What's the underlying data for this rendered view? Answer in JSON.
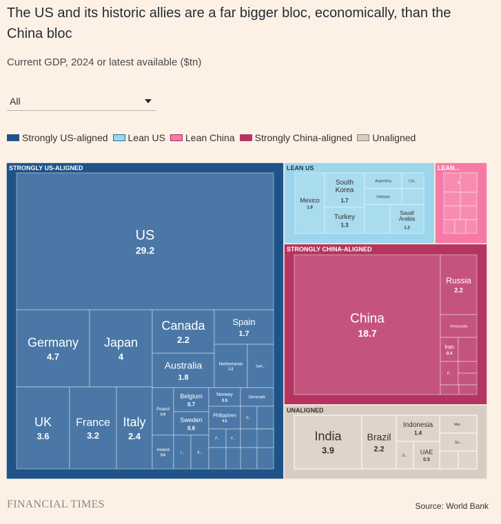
{
  "header": {
    "title": "The US and its historic allies are a far bigger bloc, economically, than the China bloc",
    "subtitle": "Current GDP, 2024 or latest available ($tn)"
  },
  "filter": {
    "selected": "All"
  },
  "legend": [
    {
      "label": "Strongly US-aligned",
      "color": "#1f5388"
    },
    {
      "label": "Lean US",
      "color": "#9dd6ec"
    },
    {
      "label": "Lean China",
      "color": "#f57ba6"
    },
    {
      "label": "Strongly China-aligned",
      "color": "#b53561"
    },
    {
      "label": "Unaligned",
      "color": "#d8cdc3"
    }
  ],
  "footer": {
    "brand": "FINANCIAL TIMES",
    "source": "Source: World Bank"
  },
  "chart_data": {
    "type": "treemap",
    "units": "$tn",
    "groups": [
      {
        "label": "STRONGLY US-ALIGNED",
        "legend": "Strongly US-aligned",
        "color": "#1f5388",
        "cell": "#4a77a6",
        "countries": [
          {
            "name": "US",
            "value": 29.2
          },
          {
            "name": "Germany",
            "value": 4.7
          },
          {
            "name": "Japan",
            "value": 4
          },
          {
            "name": "UK",
            "value": 3.6
          },
          {
            "name": "France",
            "value": 3.2
          },
          {
            "name": "Italy",
            "value": 2.4
          },
          {
            "name": "Canada",
            "value": 2.2
          },
          {
            "name": "Spain",
            "value": 1.7
          },
          {
            "name": "Australia",
            "value": 1.8
          },
          {
            "name": "Netherlands",
            "value": 1.2
          },
          {
            "name": "Swit...",
            "value": null
          },
          {
            "name": "Poland",
            "value": 0.9
          },
          {
            "name": "Belgium",
            "value": 0.7
          },
          {
            "name": "Norway",
            "value": 0.5
          },
          {
            "name": "Denmark",
            "value": null
          },
          {
            "name": "Sweden",
            "value": 0.6
          },
          {
            "name": "Philippines",
            "value": 0.5
          },
          {
            "name": "Ireland",
            "value": 0.6
          },
          {
            "name": "I...",
            "value": null
          },
          {
            "name": "A...",
            "value": null
          },
          {
            "name": "P...",
            "value": null
          },
          {
            "name": "F...",
            "value": null
          },
          {
            "name": "R...",
            "value": null
          }
        ]
      },
      {
        "label": "LEAN US",
        "legend": "Lean US",
        "color": "#9dd6ec",
        "cell": "#a9dcef",
        "countries": [
          {
            "name": "Mexico",
            "value": 1.9
          },
          {
            "name": "South Korea",
            "value": 1.7
          },
          {
            "name": "Turkey",
            "value": 1.3
          },
          {
            "name": "Argentina",
            "value": null
          },
          {
            "name": "Col...",
            "value": null
          },
          {
            "name": "Vietnam",
            "value": null
          },
          {
            "name": "Saudi Arabia",
            "value": 1.2
          }
        ]
      },
      {
        "label": "LEAN...",
        "legend": "Lean China",
        "color": "#f57ba6",
        "cell": "#f78cb2",
        "countries": [
          {
            "name": "B...",
            "value": null
          }
        ]
      },
      {
        "label": "STRONGLY CHINA-ALIGNED",
        "legend": "Strongly China-aligned",
        "color": "#b53561",
        "cell": "#c4547e",
        "countries": [
          {
            "name": "China",
            "value": 18.7
          },
          {
            "name": "Russia",
            "value": 2.2
          },
          {
            "name": "Venezuela",
            "value": null
          },
          {
            "name": "Iran",
            "value": 0.4
          },
          {
            "name": "P...",
            "value": null
          }
        ]
      },
      {
        "label": "UNALIGNED",
        "legend": "Unaligned",
        "color": "#d8cdc3",
        "cell": "#dfd4ca",
        "countries": [
          {
            "name": "India",
            "value": 3.9
          },
          {
            "name": "Brazil",
            "value": 2.2
          },
          {
            "name": "Indonesia",
            "value": 1.4
          },
          {
            "name": "UAE",
            "value": 0.5
          },
          {
            "name": "S...",
            "value": null
          },
          {
            "name": "Mal...",
            "value": null
          },
          {
            "name": "So...",
            "value": null
          }
        ]
      }
    ]
  }
}
